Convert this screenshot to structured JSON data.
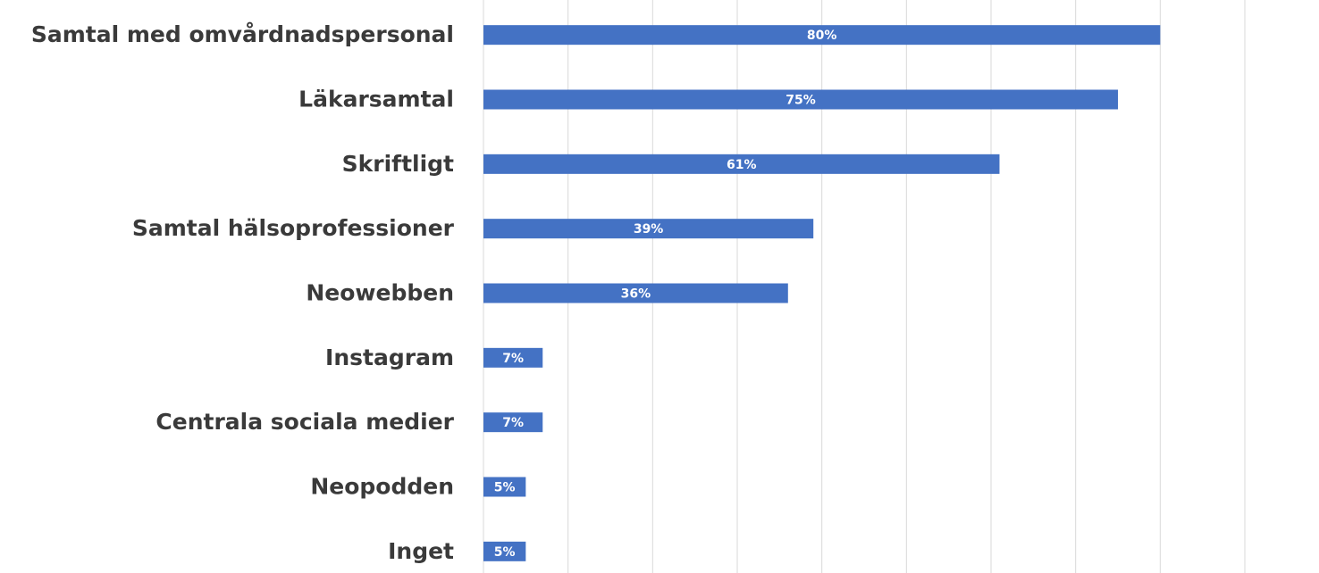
{
  "chart_data": {
    "type": "bar",
    "orientation": "horizontal",
    "categories": [
      "Samtal med omvårdnadspersonal",
      "Läkarsamtal",
      "Skriftligt",
      "Samtal hälsoprofessioner",
      "Neowebben",
      "Instagram",
      "Centrala sociala medier",
      "Neopodden",
      "Inget"
    ],
    "values": [
      80,
      75,
      61,
      39,
      36,
      7,
      7,
      5,
      5
    ],
    "value_labels": [
      "80%",
      "75%",
      "61%",
      "39%",
      "36%",
      "7%",
      "7%",
      "5%",
      "5%"
    ],
    "color": "#4472c4",
    "xlim": [
      0,
      90
    ],
    "xticks": [
      0,
      10,
      20,
      30,
      40,
      50,
      60,
      70,
      80,
      90
    ],
    "grid": true
  }
}
